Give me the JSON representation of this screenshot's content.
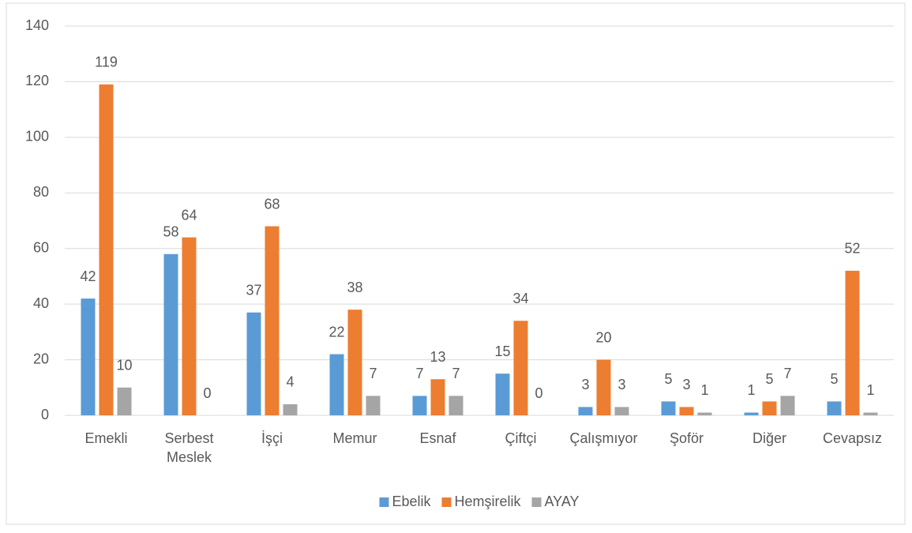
{
  "chart_data": {
    "type": "bar",
    "categories": [
      "Emekli",
      "Serbest Meslek",
      "İşçi",
      "Memur",
      "Esnaf",
      "Çiftçi",
      "Çalışmıyor",
      "Şoför",
      "Diğer",
      "Cevapsız"
    ],
    "series": [
      {
        "name": "Ebelik",
        "color": "#5b9bd5",
        "values": [
          42,
          58,
          37,
          22,
          7,
          15,
          3,
          5,
          1,
          5
        ]
      },
      {
        "name": "Hemşirelik",
        "color": "#ed7d31",
        "values": [
          119,
          64,
          68,
          38,
          13,
          34,
          20,
          3,
          5,
          52
        ]
      },
      {
        "name": "AYAY",
        "color": "#a5a5a5",
        "values": [
          10,
          0,
          4,
          7,
          7,
          0,
          3,
          1,
          7,
          1
        ]
      }
    ],
    "ylim": [
      0,
      140
    ],
    "yticks": [
      0,
      20,
      40,
      60,
      80,
      100,
      120,
      140
    ],
    "grid": true,
    "legend": "bottom"
  }
}
